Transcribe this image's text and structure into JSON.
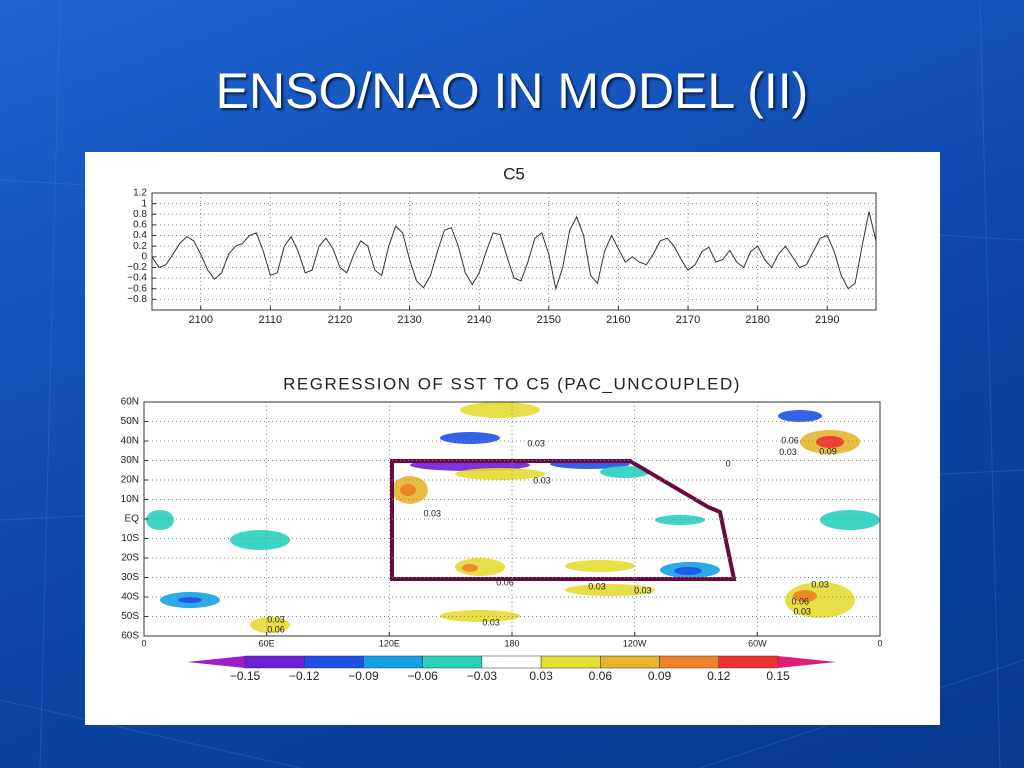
{
  "slide": {
    "title": "ENSO/NAO IN MODEL (II)"
  },
  "chart_data": [
    {
      "type": "line",
      "title": "C5",
      "color": "#333333",
      "grid": true,
      "xlim": [
        2093,
        2197
      ],
      "ylim": [
        -1,
        1.2
      ],
      "xticks": [
        2100,
        2110,
        2120,
        2130,
        2140,
        2150,
        2160,
        2170,
        2180,
        2190
      ],
      "yticks": [
        1.2,
        1,
        0.8,
        0.6,
        0.4,
        0.2,
        0,
        {
          "value": -0.2,
          "label": "−0.2"
        },
        {
          "value": -0.4,
          "label": "−0.4"
        },
        {
          "value": -0.6,
          "label": "−0.6"
        },
        {
          "value": -0.8,
          "label": "−0.8"
        }
      ],
      "x": [
        2093,
        2094,
        2095,
        2096,
        2097,
        2098,
        2099,
        2100,
        2101,
        2102,
        2103,
        2104,
        2105,
        2106,
        2107,
        2108,
        2109,
        2110,
        2111,
        2112,
        2113,
        2114,
        2115,
        2116,
        2117,
        2118,
        2119,
        2120,
        2121,
        2122,
        2123,
        2124,
        2125,
        2126,
        2127,
        2128,
        2129,
        2130,
        2131,
        2132,
        2133,
        2134,
        2135,
        2136,
        2137,
        2138,
        2139,
        2140,
        2141,
        2142,
        2143,
        2144,
        2145,
        2146,
        2147,
        2148,
        2149,
        2150,
        2151,
        2152,
        2153,
        2154,
        2155,
        2156,
        2157,
        2158,
        2159,
        2160,
        2161,
        2162,
        2163,
        2164,
        2165,
        2166,
        2167,
        2168,
        2169,
        2170,
        2171,
        2172,
        2173,
        2174,
        2175,
        2176,
        2177,
        2178,
        2179,
        2180,
        2181,
        2182,
        2183,
        2184,
        2185,
        2186,
        2187,
        2188,
        2189,
        2190,
        2191,
        2192,
        2193,
        2194,
        2195,
        2196,
        2197
      ],
      "values": [
        0.0,
        -0.2,
        -0.15,
        0.05,
        0.25,
        0.38,
        0.3,
        0.05,
        -0.25,
        -0.42,
        -0.3,
        0.05,
        0.2,
        0.25,
        0.4,
        0.45,
        0.1,
        -0.35,
        -0.3,
        0.2,
        0.38,
        0.1,
        -0.3,
        -0.25,
        0.2,
        0.35,
        0.15,
        -0.2,
        -0.3,
        0.05,
        0.3,
        0.2,
        -0.25,
        -0.35,
        0.2,
        0.58,
        0.45,
        -0.05,
        -0.45,
        -0.58,
        -0.35,
        0.1,
        0.5,
        0.55,
        0.2,
        -0.3,
        -0.52,
        -0.3,
        0.1,
        0.45,
        0.42,
        0.0,
        -0.4,
        -0.45,
        -0.1,
        0.35,
        0.45,
        0.05,
        -0.6,
        -0.2,
        0.5,
        0.75,
        0.4,
        -0.35,
        -0.5,
        0.1,
        0.4,
        0.15,
        -0.1,
        0.0,
        -0.1,
        -0.15,
        0.05,
        0.3,
        0.35,
        0.2,
        -0.05,
        -0.25,
        -0.15,
        0.1,
        0.18,
        -0.1,
        -0.05,
        0.12,
        -0.1,
        -0.2,
        0.1,
        0.2,
        -0.05,
        -0.2,
        0.05,
        0.2,
        0.0,
        -0.2,
        -0.15,
        0.1,
        0.35,
        0.4,
        0.1,
        -0.35,
        -0.6,
        -0.5,
        0.2,
        0.85,
        0.3
      ]
    },
    {
      "type": "map",
      "title": "REGRESSION OF SST TO C5 (PAC_UNCOUPLED)",
      "grid": true,
      "xlim": [
        0,
        360
      ],
      "ylim": [
        -60,
        60
      ],
      "xticks": [
        0,
        {
          "value": 60,
          "label": "60E"
        },
        {
          "value": 120,
          "label": "120E"
        },
        180,
        {
          "value": 240,
          "label": "120W"
        },
        {
          "value": 300,
          "label": "60W"
        },
        {
          "value": 360,
          "label": "0"
        }
      ],
      "yticks": [
        {
          "value": 60,
          "label": "60N"
        },
        {
          "value": 50,
          "label": "50N"
        },
        {
          "value": 40,
          "label": "40N"
        },
        {
          "value": 30,
          "label": "30N"
        },
        {
          "value": 20,
          "label": "20N"
        },
        {
          "value": 10,
          "label": "10N"
        },
        {
          "value": 0,
          "label": "EQ"
        },
        {
          "value": -10,
          "label": "10S"
        },
        {
          "value": -20,
          "label": "20S"
        },
        {
          "value": -30,
          "label": "30S"
        },
        {
          "value": -40,
          "label": "40S"
        },
        {
          "value": -50,
          "label": "50S"
        },
        {
          "value": -60,
          "label": "60S"
        }
      ],
      "annotations": [
        {
          "text": "0.03",
          "lon": 191.8,
          "lat": 38.5
        },
        {
          "text": "0.03",
          "lon": 194.7,
          "lat": 19.5
        },
        {
          "text": "0.06",
          "lon": 316,
          "lat": 40
        },
        {
          "text": "0.03",
          "lon": 315,
          "lat": 34
        },
        {
          "text": "0.09",
          "lon": 334.6,
          "lat": 34.4
        },
        {
          "text": "0.03",
          "lon": 221.6,
          "lat": -34.9
        },
        {
          "text": "0.03",
          "lon": 244,
          "lat": -37
        },
        {
          "text": "0.03",
          "lon": 169.8,
          "lat": -53.3
        },
        {
          "text": "0.03",
          "lon": 64.6,
          "lat": -51.8
        },
        {
          "text": "0.06",
          "lon": 64.6,
          "lat": -57
        },
        {
          "text": "0.06",
          "lon": 321,
          "lat": -42.6
        },
        {
          "text": "0.03",
          "lon": 322,
          "lat": -47.7
        },
        {
          "text": "0.03",
          "lon": 330.7,
          "lat": -33.8
        },
        {
          "text": "0.03",
          "lon": 141,
          "lat": 2.6
        },
        {
          "text": "0.06",
          "lon": 176.6,
          "lat": -32.8
        },
        {
          "text": "0",
          "lon": 285.7,
          "lat": 28.2
        }
      ],
      "colorbar": {
        "levels": [
          {
            "value": -0.15,
            "label": "−0.15"
          },
          {
            "value": -0.12,
            "label": "−0.12"
          },
          {
            "value": -0.09,
            "label": "−0.09"
          },
          {
            "value": -0.06,
            "label": "−0.06"
          },
          {
            "value": -0.03,
            "label": "−0.03"
          },
          0.03,
          0.06,
          0.09,
          0.12,
          0.15
        ],
        "colors": [
          "#a01ec8",
          "#6e1ed8",
          "#1e50e6",
          "#14a0e6",
          "#28d2be",
          "#ffffff",
          "#e6dc32",
          "#e6b42d",
          "#f08228",
          "#f03232",
          "#e01e78"
        ]
      }
    }
  ]
}
